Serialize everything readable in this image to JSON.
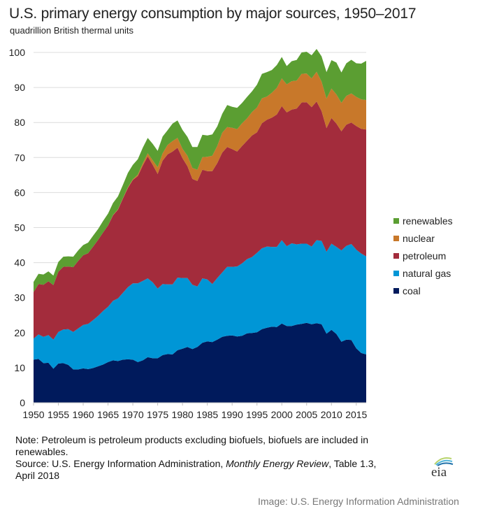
{
  "header": {
    "title": "U.S. primary energy consumption by major sources, 1950–2017",
    "subtitle": "quadrillion British thermal units"
  },
  "footer": {
    "note_line": "Note: Petroleum is petroleum products excluding biofuels, biofuels are included in renewables.",
    "source_prefix": "Source: U.S. Energy Information Administration, ",
    "source_italic": "Monthly Energy Review",
    "source_suffix": ", Table 1.3, April 2018",
    "logo_text": "eia",
    "credit": "Image: U.S. Energy Information Administration"
  },
  "chart_data": {
    "type": "area",
    "stacked": true,
    "title": "U.S. primary energy consumption by major sources, 1950–2017",
    "ylabel": "quadrillion British thermal units",
    "xlabel": "",
    "xlim": [
      1950,
      2017
    ],
    "ylim": [
      0,
      100
    ],
    "yticks": [
      0,
      10,
      20,
      30,
      40,
      50,
      60,
      70,
      80,
      90,
      100
    ],
    "xticks": [
      1950,
      1955,
      1960,
      1965,
      1970,
      1975,
      1980,
      1985,
      1990,
      1995,
      2000,
      2005,
      2010,
      2015
    ],
    "grid": true,
    "legend_position": "right",
    "x": [
      1950,
      1951,
      1952,
      1953,
      1954,
      1955,
      1956,
      1957,
      1958,
      1959,
      1960,
      1961,
      1962,
      1963,
      1964,
      1965,
      1966,
      1967,
      1968,
      1969,
      1970,
      1971,
      1972,
      1973,
      1974,
      1975,
      1976,
      1977,
      1978,
      1979,
      1980,
      1981,
      1982,
      1983,
      1984,
      1985,
      1986,
      1987,
      1988,
      1989,
      1990,
      1991,
      1992,
      1993,
      1994,
      1995,
      1996,
      1997,
      1998,
      1999,
      2000,
      2001,
      2002,
      2003,
      2004,
      2005,
      2006,
      2007,
      2008,
      2009,
      2010,
      2011,
      2012,
      2013,
      2014,
      2015,
      2016,
      2017
    ],
    "series": [
      {
        "name": "coal",
        "color": "#001a5c",
        "values": [
          12.3,
          12.5,
          11.3,
          11.4,
          9.7,
          11.2,
          11.3,
          10.8,
          9.5,
          9.5,
          9.8,
          9.6,
          9.9,
          10.4,
          10.9,
          11.6,
          12.1,
          11.9,
          12.3,
          12.4,
          12.3,
          11.6,
          12.1,
          13.0,
          12.7,
          12.7,
          13.6,
          13.9,
          13.8,
          15.0,
          15.4,
          15.9,
          15.3,
          15.9,
          17.1,
          17.5,
          17.3,
          18.0,
          18.8,
          19.1,
          19.2,
          18.9,
          19.1,
          19.8,
          19.9,
          20.1,
          21.0,
          21.4,
          21.7,
          21.6,
          22.6,
          21.9,
          21.9,
          22.3,
          22.5,
          22.8,
          22.4,
          22.7,
          22.4,
          19.7,
          20.8,
          19.6,
          17.4,
          18.0,
          17.9,
          15.5,
          14.2,
          13.8
        ]
      },
      {
        "name": "natural gas",
        "color": "#0096d6",
        "values": [
          6.0,
          7.0,
          7.5,
          7.9,
          8.3,
          9.0,
          9.6,
          10.2,
          10.7,
          11.7,
          12.4,
          12.9,
          13.7,
          14.4,
          15.3,
          15.8,
          17.0,
          17.9,
          19.1,
          20.6,
          21.8,
          22.5,
          22.7,
          22.5,
          21.7,
          19.9,
          20.3,
          19.9,
          20.0,
          20.7,
          20.2,
          19.7,
          18.4,
          17.3,
          18.4,
          17.7,
          16.6,
          17.6,
          18.4,
          19.7,
          19.6,
          20.0,
          20.7,
          21.2,
          21.7,
          22.7,
          23.1,
          23.2,
          22.8,
          22.9,
          23.8,
          22.8,
          23.6,
          22.9,
          22.9,
          22.6,
          22.2,
          23.7,
          23.8,
          23.4,
          24.6,
          24.9,
          26.1,
          26.8,
          27.4,
          28.2,
          28.4,
          28.0
        ]
      },
      {
        "name": "petroleum",
        "color": "#a32c3c",
        "values": [
          13.3,
          14.4,
          14.9,
          15.4,
          15.6,
          17.2,
          17.9,
          17.9,
          18.5,
          19.3,
          19.9,
          20.2,
          21.0,
          21.7,
          22.4,
          23.2,
          24.4,
          25.3,
          26.9,
          28.3,
          29.5,
          30.6,
          32.9,
          34.8,
          33.5,
          32.7,
          35.2,
          37.1,
          37.9,
          37.1,
          34.2,
          31.9,
          30.2,
          30.1,
          31.0,
          30.9,
          32.2,
          32.8,
          34.2,
          34.2,
          33.6,
          32.8,
          33.5,
          33.8,
          34.7,
          34.4,
          35.7,
          36.2,
          36.9,
          37.8,
          38.3,
          38.2,
          38.2,
          38.8,
          40.3,
          40.4,
          39.8,
          39.6,
          37.1,
          35.3,
          35.9,
          35.2,
          34.0,
          34.6,
          34.7,
          35.3,
          35.6,
          36.2
        ]
      },
      {
        "name": "nuclear",
        "color": "#c8782a",
        "values": [
          0.0,
          0.0,
          0.0,
          0.0,
          0.0,
          0.0,
          0.0,
          0.0,
          0.0,
          0.0,
          0.0,
          0.0,
          0.0,
          0.0,
          0.0,
          0.0,
          0.1,
          0.1,
          0.1,
          0.2,
          0.2,
          0.4,
          0.6,
          0.9,
          1.3,
          1.9,
          2.1,
          2.7,
          3.0,
          2.8,
          2.7,
          3.0,
          3.1,
          3.2,
          3.6,
          4.1,
          4.4,
          4.9,
          5.7,
          5.7,
          6.1,
          6.4,
          6.5,
          6.4,
          6.7,
          7.1,
          7.1,
          6.6,
          7.1,
          7.6,
          7.9,
          8.0,
          8.1,
          7.96,
          8.2,
          8.2,
          8.2,
          8.5,
          8.4,
          8.4,
          8.4,
          8.3,
          8.1,
          8.2,
          8.3,
          8.3,
          8.4,
          8.4
        ]
      },
      {
        "name": "renewables",
        "color": "#5b9e32",
        "values": [
          2.9,
          2.9,
          2.9,
          2.8,
          2.7,
          2.8,
          2.9,
          2.9,
          3.0,
          3.0,
          2.9,
          3.0,
          3.1,
          3.1,
          3.3,
          3.4,
          3.4,
          3.7,
          3.8,
          4.1,
          4.1,
          4.4,
          4.5,
          4.4,
          4.7,
          4.7,
          4.8,
          4.2,
          5.0,
          5.0,
          5.4,
          5.4,
          6.0,
          6.5,
          6.4,
          6.1,
          6.1,
          5.6,
          5.4,
          6.3,
          6.0,
          6.1,
          5.8,
          6.1,
          5.9,
          6.5,
          7.0,
          7.0,
          6.5,
          6.5,
          6.1,
          5.2,
          5.7,
          5.9,
          6.1,
          6.2,
          6.6,
          6.5,
          7.2,
          7.6,
          8.1,
          9.1,
          8.7,
          9.3,
          9.6,
          9.6,
          10.2,
          11.2
        ]
      }
    ]
  }
}
